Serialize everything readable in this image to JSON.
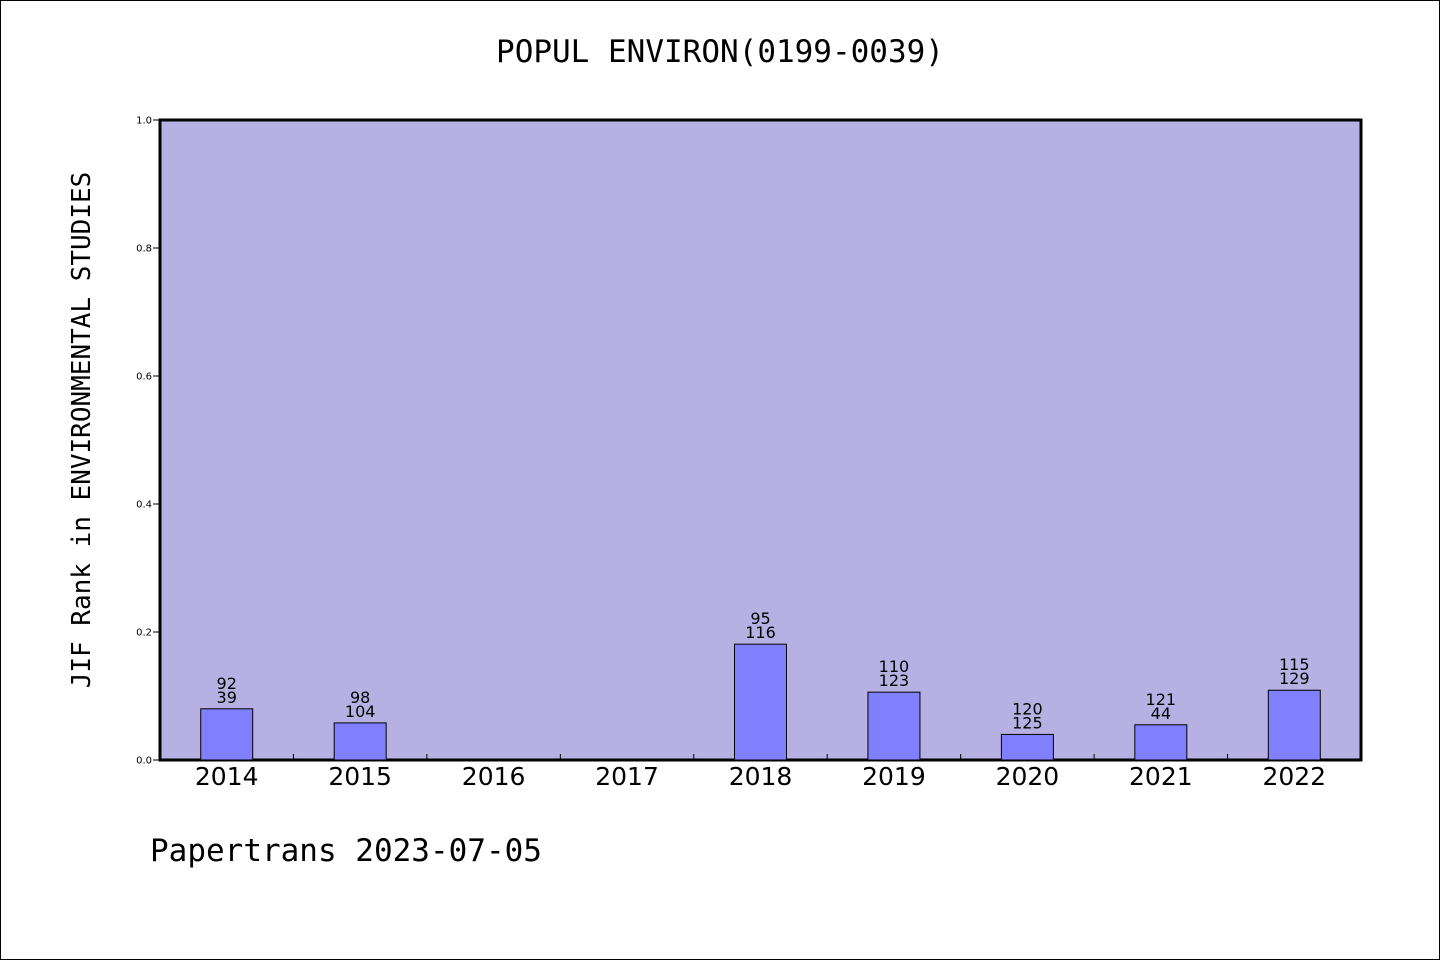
{
  "chart_data": {
    "type": "bar",
    "title": "POPUL ENVIRON(0199-0039)",
    "xlabel": "",
    "ylabel": "JIF Rank in ENVIRONMENTAL STUDIES",
    "ylim": [
      0,
      1.0
    ],
    "yticks": [
      "0.0",
      "0.2",
      "0.4",
      "0.6",
      "0.8",
      "1.0"
    ],
    "grid": false,
    "categories": [
      "2014",
      "2015",
      "2016",
      "2017",
      "2018",
      "2019",
      "2020",
      "2021",
      "2022"
    ],
    "values": [
      0.08,
      0.058,
      null,
      null,
      0.181,
      0.106,
      0.04,
      0.055,
      0.109
    ],
    "labels": [
      [
        "92",
        "39"
      ],
      [
        "98",
        "104"
      ],
      null,
      null,
      [
        "95",
        "116"
      ],
      [
        "110",
        "123"
      ],
      [
        "120",
        "125"
      ],
      [
        "121",
        "44"
      ],
      [
        "115",
        "129"
      ]
    ]
  },
  "footer": "Papertrans 2023-07-05",
  "colors": {
    "plot_background": "#b7b1e3",
    "bar_fill": "#8080ff",
    "bar_stroke": "#000000",
    "axis": "#000000"
  }
}
